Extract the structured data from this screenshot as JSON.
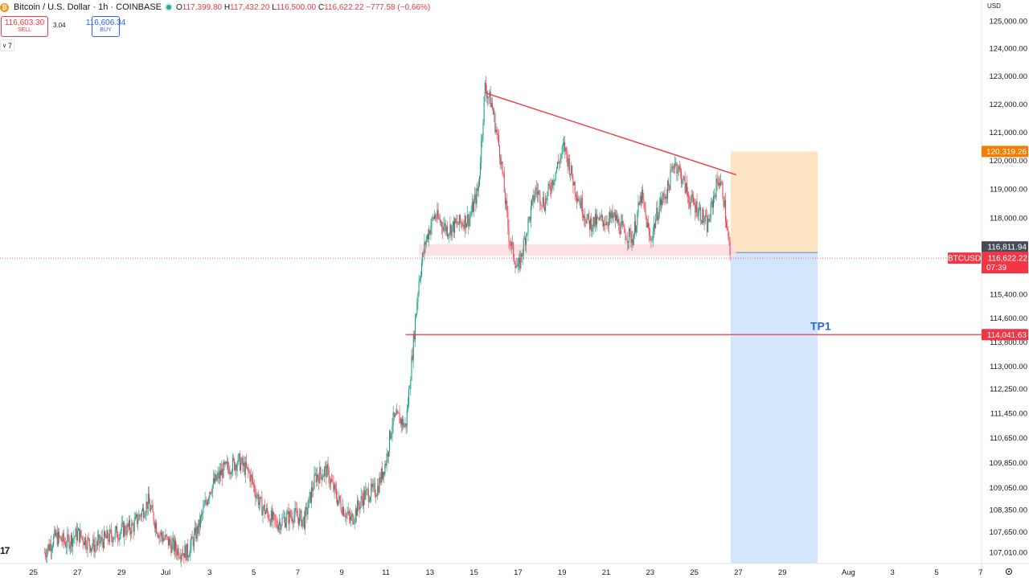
{
  "header": {
    "symbol_title": "Bitcoin / U.S. Dollar · 1h · COINBASE",
    "logo_letter": "₿",
    "ohlc": {
      "open_label": "O",
      "open": "117,399.80",
      "high_label": "H",
      "high": "117,432.20",
      "low_label": "L",
      "low": "116,500.00",
      "close_label": "C",
      "close": "116,622.22",
      "change": "−777.58 (−0.66%)"
    }
  },
  "trade": {
    "sell_price": "116,603.30",
    "sell_label": "SELL",
    "spread": "3.04",
    "buy_price": "116,606.34",
    "buy_label": "BUY"
  },
  "indicators_toggle": {
    "icon": "chevron-down-icon",
    "count": "7"
  },
  "price_axis": {
    "currency": "USD"
  },
  "settings_icon": "gear-icon",
  "watermark": "17",
  "colors": {
    "up": "#089981",
    "down": "#f23645",
    "trendline": "#f23645",
    "target_zone": "#fde5c4",
    "stop_zone": "#d4e6fb",
    "support_zone": "#fbdde0",
    "price_tag": "#f23645",
    "target_tag": "#f57c00",
    "entry_tag": "#474d57",
    "tp_label": "#2962ff"
  },
  "chart_data": {
    "type": "candlestick",
    "symbol": "BTCUSD",
    "interval": "1h",
    "y_axis": {
      "scale": "log",
      "ticks": [
        125000,
        124000,
        123000,
        122000,
        121000,
        120000,
        119000,
        118000,
        115400,
        114600,
        113800,
        113000,
        112250,
        111450,
        110650,
        109850,
        109050,
        108350,
        107650,
        107010
      ],
      "tick_labels": [
        "125,000.00",
        "124,000.00",
        "123,000.00",
        "122,000.00",
        "121,000.00",
        "120,000.00",
        "119,000.00",
        "118,000.00",
        "115,400.00",
        "114,600.00",
        "113,800.00",
        "113,000.00",
        "112,250.00",
        "111,450.00",
        "110,650.00",
        "109,850.00",
        "109,050.00",
        "108,350.00",
        "107,650.00",
        "107,010.00"
      ]
    },
    "x_axis": {
      "tick_labels": [
        "25",
        "27",
        "29",
        "Jul",
        "3",
        "5",
        "7",
        "9",
        "11",
        "13",
        "15",
        "17",
        "19",
        "21",
        "23",
        "25",
        "27",
        "29",
        "Aug",
        "3",
        "5",
        "7"
      ],
      "tick_days": [
        -6,
        -4,
        -2,
        0,
        2,
        4,
        6,
        8,
        10,
        12,
        14,
        16,
        18,
        20,
        22,
        24,
        26,
        28,
        31,
        33,
        35,
        37
      ]
    },
    "price_path": [
      {
        "day": -5.5,
        "price": 107000
      },
      {
        "day": -5.0,
        "price": 107500
      },
      {
        "day": -4.5,
        "price": 107300
      },
      {
        "day": -4.0,
        "price": 107600
      },
      {
        "day": -3.3,
        "price": 107200
      },
      {
        "day": -2.8,
        "price": 107400
      },
      {
        "day": -2.0,
        "price": 107700
      },
      {
        "day": -1.5,
        "price": 107800
      },
      {
        "day": -0.8,
        "price": 108600
      },
      {
        "day": -0.3,
        "price": 107600
      },
      {
        "day": 0.5,
        "price": 107100
      },
      {
        "day": 1.0,
        "price": 107000
      },
      {
        "day": 1.5,
        "price": 107800
      },
      {
        "day": 2.0,
        "price": 109000
      },
      {
        "day": 2.6,
        "price": 109600
      },
      {
        "day": 3.3,
        "price": 109900
      },
      {
        "day": 3.8,
        "price": 109500
      },
      {
        "day": 4.3,
        "price": 108500
      },
      {
        "day": 5.0,
        "price": 107900
      },
      {
        "day": 5.8,
        "price": 108200
      },
      {
        "day": 6.3,
        "price": 108000
      },
      {
        "day": 6.8,
        "price": 109400
      },
      {
        "day": 7.3,
        "price": 109600
      },
      {
        "day": 7.8,
        "price": 108700
      },
      {
        "day": 8.4,
        "price": 108000
      },
      {
        "day": 9.0,
        "price": 108800
      },
      {
        "day": 9.6,
        "price": 109000
      },
      {
        "day": 10.0,
        "price": 109900
      },
      {
        "day": 10.3,
        "price": 111200
      },
      {
        "day": 10.6,
        "price": 111300
      },
      {
        "day": 10.9,
        "price": 111000
      },
      {
        "day": 11.2,
        "price": 113400
      },
      {
        "day": 11.5,
        "price": 115900
      },
      {
        "day": 11.8,
        "price": 117200
      },
      {
        "day": 12.2,
        "price": 118100
      },
      {
        "day": 12.8,
        "price": 117600
      },
      {
        "day": 13.3,
        "price": 117800
      },
      {
        "day": 13.8,
        "price": 118000
      },
      {
        "day": 14.2,
        "price": 119000
      },
      {
        "day": 14.5,
        "price": 122600
      },
      {
        "day": 14.8,
        "price": 122000
      },
      {
        "day": 15.2,
        "price": 120200
      },
      {
        "day": 15.6,
        "price": 117300
      },
      {
        "day": 16.0,
        "price": 116200
      },
      {
        "day": 16.4,
        "price": 117600
      },
      {
        "day": 16.8,
        "price": 119000
      },
      {
        "day": 17.2,
        "price": 118500
      },
      {
        "day": 17.6,
        "price": 119400
      },
      {
        "day": 18.1,
        "price": 120500
      },
      {
        "day": 18.6,
        "price": 119000
      },
      {
        "day": 19.2,
        "price": 117800
      },
      {
        "day": 19.8,
        "price": 117900
      },
      {
        "day": 20.4,
        "price": 118000
      },
      {
        "day": 20.8,
        "price": 117500
      },
      {
        "day": 21.2,
        "price": 117300
      },
      {
        "day": 21.6,
        "price": 118800
      },
      {
        "day": 22.0,
        "price": 117200
      },
      {
        "day": 22.4,
        "price": 118400
      },
      {
        "day": 22.8,
        "price": 119000
      },
      {
        "day": 23.1,
        "price": 120000
      },
      {
        "day": 23.4,
        "price": 119500
      },
      {
        "day": 23.8,
        "price": 118600
      },
      {
        "day": 24.2,
        "price": 118300
      },
      {
        "day": 24.6,
        "price": 117700
      },
      {
        "day": 24.9,
        "price": 118800
      },
      {
        "day": 25.1,
        "price": 119400
      },
      {
        "day": 25.3,
        "price": 118900
      },
      {
        "day": 25.5,
        "price": 117500
      },
      {
        "day": 25.65,
        "price": 116622
      }
    ],
    "trendline": {
      "from": {
        "day": 14.5,
        "price": 122400
      },
      "to": {
        "day": 25.9,
        "price": 119500
      }
    },
    "support_zone": {
      "day_from": 11.5,
      "day_to": 25.9,
      "price_low": 116700,
      "price_high": 117100
    },
    "position": {
      "day_from": 25.65,
      "day_to": 29.6,
      "entry": 116811.94,
      "target": 120319.26,
      "stop_low": 107000
    },
    "tp1_level": {
      "price": 114041.63,
      "label": "TP1",
      "day_from": 10.9
    },
    "price_labels": {
      "target": "120,319.26",
      "entry": "116,811.94",
      "current_symbol": "BTCUSD",
      "current": "116,622.22",
      "countdown": "07:39",
      "tp1": "114,041.63"
    }
  }
}
